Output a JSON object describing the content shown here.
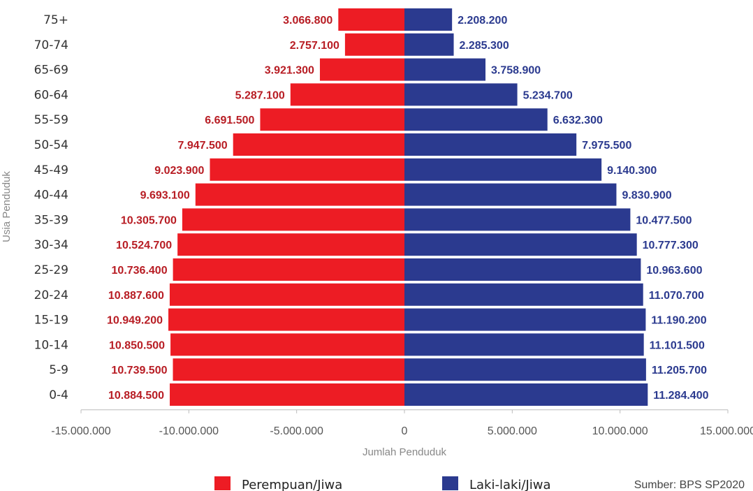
{
  "chart_data": {
    "type": "bar",
    "orientation": "horizontal",
    "layout": "population-pyramid",
    "categories": [
      "75+",
      "70-74",
      "65-69",
      "60-64",
      "55-59",
      "50-54",
      "45-49",
      "40-44",
      "35-39",
      "30-34",
      "25-29",
      "20-24",
      "15-19",
      "10-14",
      "5-9",
      "0-4"
    ],
    "series": [
      {
        "name": "Perempuan/Jiwa",
        "color": "#ed1c24",
        "label_color": "#b81d24",
        "values": [
          -3066800,
          -2757100,
          -3921300,
          -5287100,
          -6691500,
          -7947500,
          -9023900,
          -9693100,
          -10305700,
          -10524700,
          -10736400,
          -10887600,
          -10949200,
          -10850500,
          -10739500,
          -10884500
        ],
        "labels": [
          "3.066.800",
          "2.757.100",
          "3.921.300",
          "5.287.100",
          "6.691.500",
          "7.947.500",
          "9.023.900",
          "9.693.100",
          "10.305.700",
          "10.524.700",
          "10.736.400",
          "10.887.600",
          "10.949.200",
          "10.850.500",
          "10.739.500",
          "10.884.500"
        ]
      },
      {
        "name": "Laki-laki/Jiwa",
        "color": "#2b3a8f",
        "label_color": "#2b3a8f",
        "values": [
          2208200,
          2285300,
          3758900,
          5234700,
          6632300,
          7975500,
          9140300,
          9830900,
          10477500,
          10777300,
          10963600,
          11070700,
          11190200,
          11101500,
          11205700,
          11284400
        ],
        "labels": [
          "2.208.200",
          "2.285.300",
          "3.758.900",
          "5.234.700",
          "6.632.300",
          "7.975.500",
          "9.140.300",
          "9.830.900",
          "10.477.500",
          "10.777.300",
          "10.963.600",
          "11.070.700",
          "11.190.200",
          "11.101.500",
          "11.205.700",
          "11.284.400"
        ]
      }
    ],
    "xlim": [
      -15000000,
      15000000
    ],
    "xticks": [
      -15000000,
      -10000000,
      -5000000,
      0,
      5000000,
      10000000,
      15000000
    ],
    "xtick_labels": [
      "-15.000.000",
      "-10.000.000",
      "-5.000.000",
      "0",
      "5.000.000",
      "10.000.000",
      "15.000.000"
    ],
    "xlabel": "Jumlah Penduduk",
    "ylabel": "Usia Penduduk",
    "grid": false,
    "legend_position": "bottom",
    "source": "Sumber: BPS SP2020"
  }
}
